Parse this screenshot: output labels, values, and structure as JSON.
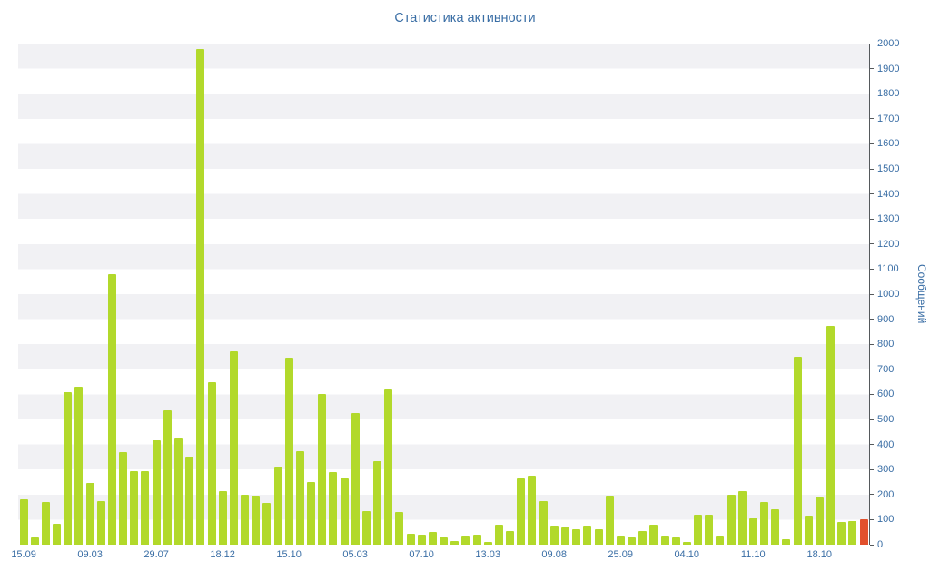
{
  "title": "Статистика активности",
  "chart_data": {
    "type": "bar",
    "title": "Статистика активности",
    "xlabel": "",
    "ylabel": "Сообщений",
    "y_axis": {
      "min": 0,
      "max": 2000,
      "step": 100,
      "side": "right"
    },
    "x_tick_labels": [
      "15.09",
      "09.03",
      "29.07",
      "18.12",
      "15.10",
      "05.03",
      "07.10",
      "13.03",
      "09.08",
      "25.09",
      "04.10",
      "11.10",
      "18.10"
    ],
    "x_tick_every": 6,
    "values": [
      180,
      30,
      170,
      85,
      610,
      630,
      245,
      175,
      1080,
      370,
      295,
      295,
      415,
      535,
      425,
      350,
      1980,
      650,
      215,
      770,
      200,
      195,
      165,
      310,
      745,
      375,
      250,
      600,
      290,
      265,
      525,
      135,
      335,
      620,
      130,
      45,
      40,
      50,
      30,
      15,
      35,
      40,
      10,
      80,
      55,
      265,
      275,
      175,
      75,
      70,
      60,
      75,
      60,
      195,
      35,
      30,
      55,
      80,
      35,
      30,
      10,
      120,
      120,
      35,
      200,
      215,
      105,
      170,
      140,
      20,
      750,
      115,
      190,
      875,
      90,
      95,
      100
    ],
    "bar_color": "#b2d92b",
    "highlight": {
      "index": 76,
      "color": "#e2502d"
    },
    "background_stripes": {
      "band": 100,
      "colors": [
        "#ffffff",
        "#f1f1f4"
      ]
    },
    "label_color": "#3a6ea5",
    "axis_color": "#55595c",
    "grid": "horizontal-bands",
    "legend": "none"
  }
}
